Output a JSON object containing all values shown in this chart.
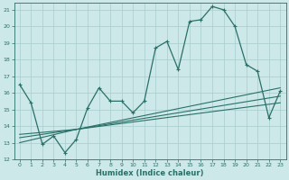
{
  "xlabel": "Humidex (Indice chaleur)",
  "xlim": [
    -0.5,
    23.5
  ],
  "ylim": [
    12,
    21.4
  ],
  "yticks": [
    12,
    13,
    14,
    15,
    16,
    17,
    18,
    19,
    20,
    21
  ],
  "xticks": [
    0,
    1,
    2,
    3,
    4,
    5,
    6,
    7,
    8,
    9,
    10,
    11,
    12,
    13,
    14,
    15,
    16,
    17,
    18,
    19,
    20,
    21,
    22,
    23
  ],
  "bg_color": "#cce8e8",
  "line_color": "#2a7068",
  "grid_color": "#a8cccc",
  "series1_x": [
    0,
    1,
    2,
    3,
    4,
    5,
    6,
    7,
    8,
    9,
    10,
    11,
    12,
    13,
    14,
    15,
    16,
    17,
    18,
    19,
    20,
    21,
    22,
    23
  ],
  "series1_y": [
    16.5,
    15.4,
    12.9,
    13.4,
    12.4,
    13.2,
    15.1,
    16.3,
    15.5,
    15.5,
    14.8,
    15.5,
    18.7,
    19.1,
    17.4,
    20.3,
    20.4,
    21.2,
    21.0,
    20.0,
    17.7,
    17.3,
    14.5,
    16.1
  ],
  "line2_x": [
    0,
    5,
    23
  ],
  "line2_y": [
    13.5,
    13.8,
    16.3
  ],
  "line3_x": [
    0,
    5,
    23
  ],
  "line3_y": [
    13.3,
    13.8,
    15.8
  ],
  "line4_x": [
    0,
    5,
    23
  ],
  "line4_y": [
    13.0,
    13.8,
    15.4
  ]
}
